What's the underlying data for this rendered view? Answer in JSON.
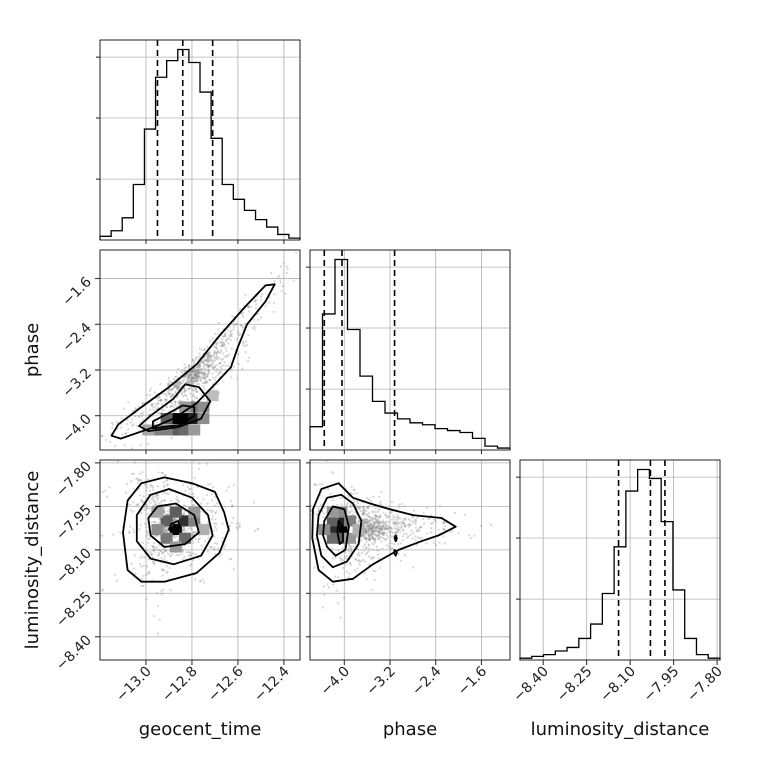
{
  "chart_data": {
    "type": "corner",
    "parameters": [
      "geocent_time",
      "phase",
      "luminosity_distance"
    ],
    "axis_labels": {
      "geocent_time": "geocent_time",
      "phase": "phase",
      "luminosity_distance": "luminosity_distance"
    },
    "ranges": {
      "geocent_time": [
        -13.2,
        -12.33
      ],
      "phase": [
        -4.6,
        -1.1
      ],
      "luminosity_distance": [
        -8.48,
        -7.79
      ]
    },
    "ticks": {
      "geocent_time": [
        -13.0,
        -12.8,
        -12.6,
        -12.4
      ],
      "phase": [
        -4.0,
        -3.2,
        -2.4,
        -1.6
      ],
      "luminosity_distance": [
        -8.4,
        -8.25,
        -8.1,
        -7.95,
        -7.8
      ]
    },
    "tick_labels": {
      "geocent_time": [
        "−13.0",
        "−12.8",
        "−12.6",
        "−12.4"
      ],
      "phase": [
        "−4.0",
        "−3.2",
        "−2.4",
        "−1.6"
      ],
      "luminosity_distance": [
        "−8.40",
        "−8.25",
        "−8.10",
        "−7.95",
        "−7.80"
      ]
    },
    "quantiles": {
      "geocent_time": [
        -12.95,
        -12.84,
        -12.71
      ],
      "phase": [
        -4.35,
        -4.04,
        -3.12
      ],
      "luminosity_distance": [
        -8.14,
        -8.03,
        -7.98
      ]
    },
    "histograms": {
      "geocent_time": [
        2,
        5,
        12,
        30,
        60,
        88,
        97,
        103,
        96,
        80,
        55,
        30,
        22,
        16,
        11,
        7,
        3,
        1
      ],
      "phase": [
        12,
        70,
        98,
        62,
        38,
        25,
        19,
        16,
        14,
        13,
        11,
        10,
        9,
        6,
        2,
        1
      ],
      "luminosity_distance": [
        1,
        2,
        3,
        5,
        7,
        12,
        20,
        37,
        63,
        94,
        106,
        101,
        77,
        39,
        12,
        3,
        1
      ]
    },
    "contours": [
      {
        "x": "geocent_time",
        "y": "phase",
        "levels": [
          [
            [
              -13.11,
              -4.4
            ],
            [
              -12.98,
              -4.22
            ],
            [
              -12.88,
              -4.05
            ],
            [
              -12.78,
              -3.78
            ],
            [
              -12.7,
              -3.45
            ],
            [
              -12.63,
              -3.15
            ],
            [
              -12.6,
              -2.8
            ],
            [
              -12.56,
              -2.4
            ],
            [
              -12.48,
              -2.0
            ],
            [
              -12.44,
              -1.7
            ],
            [
              -12.48,
              -1.72
            ],
            [
              -12.57,
              -2.1
            ],
            [
              -12.68,
              -2.6
            ],
            [
              -12.78,
              -3.1
            ],
            [
              -12.9,
              -3.5
            ],
            [
              -13.02,
              -3.85
            ],
            [
              -13.12,
              -4.15
            ],
            [
              -13.15,
              -4.35
            ],
            [
              -13.11,
              -4.4
            ]
          ],
          [
            [
              -12.99,
              -4.27
            ],
            [
              -12.86,
              -4.2
            ],
            [
              -12.76,
              -4.05
            ],
            [
              -12.72,
              -3.75
            ],
            [
              -12.77,
              -3.5
            ],
            [
              -12.83,
              -3.45
            ],
            [
              -12.88,
              -3.7
            ],
            [
              -12.98,
              -4.0
            ],
            [
              -13.03,
              -4.18
            ],
            [
              -12.99,
              -4.27
            ]
          ],
          [
            [
              -12.97,
              -4.22
            ],
            [
              -12.85,
              -4.16
            ],
            [
              -12.79,
              -4.0
            ],
            [
              -12.79,
              -3.85
            ],
            [
              -12.84,
              -3.82
            ],
            [
              -12.9,
              -3.95
            ],
            [
              -12.97,
              -4.1
            ],
            [
              -12.97,
              -4.22
            ]
          ]
        ]
      },
      {
        "x": "geocent_time",
        "y": "luminosity_distance",
        "levels": [
          [
            [
              -13.02,
              -7.87
            ],
            [
              -12.92,
              -7.85
            ],
            [
              -12.8,
              -7.87
            ],
            [
              -12.7,
              -7.9
            ],
            [
              -12.66,
              -7.97
            ],
            [
              -12.64,
              -8.03
            ],
            [
              -12.68,
              -8.11
            ],
            [
              -12.78,
              -8.18
            ],
            [
              -12.92,
              -8.21
            ],
            [
              -13.02,
              -8.21
            ],
            [
              -13.08,
              -8.17
            ],
            [
              -13.1,
              -8.04
            ],
            [
              -13.08,
              -7.93
            ],
            [
              -13.02,
              -7.87
            ]
          ],
          [
            [
              -12.98,
              -7.91
            ],
            [
              -12.9,
              -7.89
            ],
            [
              -12.8,
              -7.92
            ],
            [
              -12.73,
              -7.98
            ],
            [
              -12.71,
              -8.05
            ],
            [
              -12.76,
              -8.12
            ],
            [
              -12.88,
              -8.15
            ],
            [
              -12.98,
              -8.13
            ],
            [
              -13.04,
              -8.07
            ],
            [
              -13.04,
              -7.98
            ],
            [
              -12.98,
              -7.91
            ]
          ],
          [
            [
              -12.95,
              -7.95
            ],
            [
              -12.87,
              -7.94
            ],
            [
              -12.79,
              -7.98
            ],
            [
              -12.77,
              -8.04
            ],
            [
              -12.83,
              -8.08
            ],
            [
              -12.92,
              -8.09
            ],
            [
              -12.98,
              -8.05
            ],
            [
              -12.99,
              -7.99
            ],
            [
              -12.95,
              -7.95
            ]
          ],
          [
            [
              -12.89,
              -8.01
            ],
            [
              -12.86,
              -8.0
            ],
            [
              -12.85,
              -8.03
            ],
            [
              -12.88,
              -8.04
            ],
            [
              -12.9,
              -8.03
            ],
            [
              -12.89,
              -8.01
            ]
          ]
        ]
      },
      {
        "x": "phase",
        "y": "luminosity_distance",
        "levels": [
          [
            [
              -4.55,
              -7.96
            ],
            [
              -4.4,
              -7.89
            ],
            [
              -4.1,
              -7.87
            ],
            [
              -3.85,
              -7.92
            ],
            [
              -3.55,
              -7.94
            ],
            [
              -3.2,
              -7.96
            ],
            [
              -2.8,
              -7.98
            ],
            [
              -2.3,
              -7.99
            ],
            [
              -2.05,
              -8.02
            ],
            [
              -2.35,
              -8.05
            ],
            [
              -2.65,
              -8.07
            ],
            [
              -3.05,
              -8.1
            ],
            [
              -3.5,
              -8.15
            ],
            [
              -3.85,
              -8.2
            ],
            [
              -4.2,
              -8.21
            ],
            [
              -4.45,
              -8.17
            ],
            [
              -4.56,
              -8.06
            ],
            [
              -4.55,
              -7.96
            ]
          ],
          [
            [
              -4.45,
              -7.98
            ],
            [
              -4.3,
              -7.92
            ],
            [
              -4.05,
              -7.91
            ],
            [
              -3.85,
              -7.94
            ],
            [
              -3.7,
              -8.0
            ],
            [
              -3.75,
              -8.08
            ],
            [
              -3.95,
              -8.14
            ],
            [
              -4.2,
              -8.16
            ],
            [
              -4.4,
              -8.12
            ],
            [
              -4.48,
              -8.05
            ],
            [
              -4.45,
              -7.98
            ]
          ],
          [
            [
              -4.35,
              -8.0
            ],
            [
              -4.2,
              -7.95
            ],
            [
              -4.0,
              -7.96
            ],
            [
              -3.92,
              -8.02
            ],
            [
              -3.98,
              -8.1
            ],
            [
              -4.15,
              -8.12
            ],
            [
              -4.3,
              -8.09
            ],
            [
              -4.37,
              -8.05
            ],
            [
              -4.35,
              -8.0
            ]
          ],
          [
            [
              -4.1,
              -8.0
            ],
            [
              -4.03,
              -8.02
            ],
            [
              -4.02,
              -8.07
            ],
            [
              -4.08,
              -8.08
            ],
            [
              -4.12,
              -8.04
            ],
            [
              -4.1,
              -8.0
            ]
          ],
          [
            [
              -3.12,
              -8.1
            ],
            [
              -3.08,
              -8.11
            ],
            [
              -3.1,
              -8.12
            ],
            [
              -3.13,
              -8.11
            ],
            [
              -3.12,
              -8.1
            ]
          ],
          [
            [
              -3.1,
              -8.05
            ],
            [
              -3.08,
              -8.06
            ],
            [
              -3.1,
              -8.07
            ],
            [
              -3.12,
              -8.06
            ],
            [
              -3.1,
              -8.05
            ]
          ]
        ]
      }
    ],
    "density_cells": [
      {
        "x": "geocent_time",
        "y": "phase",
        "cells": [
          [
            -12.87,
            -4.05,
            1.0
          ],
          [
            -12.83,
            -4.05,
            1.0
          ],
          [
            -12.79,
            -4.05,
            0.85
          ],
          [
            -12.91,
            -4.05,
            0.6
          ],
          [
            -12.87,
            -4.25,
            0.6
          ],
          [
            -12.83,
            -4.25,
            0.55
          ],
          [
            -12.95,
            -4.25,
            0.45
          ],
          [
            -12.79,
            -3.85,
            0.5
          ],
          [
            -12.75,
            -3.85,
            0.4
          ],
          [
            -12.83,
            -3.85,
            0.35
          ],
          [
            -12.75,
            -4.05,
            0.4
          ],
          [
            -12.91,
            -4.25,
            0.45
          ],
          [
            -12.99,
            -4.25,
            0.3
          ],
          [
            -12.71,
            -3.65,
            0.2
          ],
          [
            -12.79,
            -4.25,
            0.35
          ]
        ]
      },
      {
        "x": "geocent_time",
        "y": "luminosity_distance",
        "cells": [
          [
            -12.87,
            -8.03,
            1.0
          ],
          [
            -12.83,
            -8.0,
            0.8
          ],
          [
            -12.91,
            -8.0,
            0.6
          ],
          [
            -12.87,
            -7.97,
            0.6
          ],
          [
            -12.83,
            -8.06,
            0.55
          ],
          [
            -12.91,
            -8.06,
            0.5
          ],
          [
            -12.79,
            -8.0,
            0.45
          ],
          [
            -12.95,
            -8.03,
            0.4
          ],
          [
            -12.79,
            -7.97,
            0.35
          ],
          [
            -12.95,
            -7.97,
            0.3
          ],
          [
            -12.87,
            -8.09,
            0.35
          ],
          [
            -12.75,
            -8.03,
            0.25
          ]
        ]
      },
      {
        "x": "phase",
        "y": "luminosity_distance",
        "cells": [
          [
            -4.05,
            -8.03,
            1.0
          ],
          [
            -4.2,
            -8.03,
            0.8
          ],
          [
            -4.05,
            -8.0,
            0.85
          ],
          [
            -4.2,
            -8.0,
            0.6
          ],
          [
            -4.05,
            -8.06,
            0.6
          ],
          [
            -4.2,
            -8.06,
            0.55
          ],
          [
            -3.9,
            -8.0,
            0.45
          ],
          [
            -4.35,
            -8.03,
            0.4
          ],
          [
            -3.9,
            -8.06,
            0.35
          ],
          [
            -4.05,
            -7.97,
            0.4
          ],
          [
            -4.2,
            -7.97,
            0.35
          ],
          [
            -3.75,
            -8.03,
            0.25
          ]
        ]
      }
    ],
    "grid": true,
    "scatter_density": "gray samples behind 2D contours"
  }
}
